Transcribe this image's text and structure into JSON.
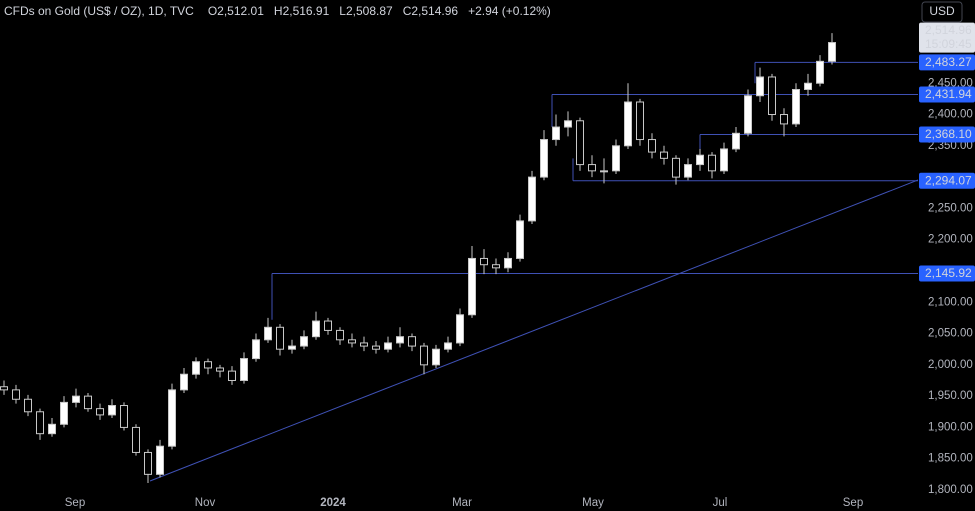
{
  "header": {
    "symbol": "CFDs on Gold (US$ / OZ), 1D, TVC",
    "ohlc": [
      {
        "label": "O",
        "value": "2,512.01"
      },
      {
        "label": "H",
        "value": "2,516.91"
      },
      {
        "label": "L",
        "value": "2,508.87"
      },
      {
        "label": "C",
        "value": "2,514.96"
      }
    ],
    "change": "+2.94 (+0.12%)"
  },
  "currency_button": "USD",
  "chart_data": {
    "type": "candlestick",
    "up_color": "#ffffff",
    "down_color": "#000000",
    "wick_color": "#c8c8c8",
    "level_color": "#3f51b5",
    "open": [
      1965,
      1960,
      1945,
      1925,
      1890,
      1905,
      1940,
      1950,
      1930,
      1920,
      1935,
      1900,
      1860,
      1825,
      1870,
      1960,
      1985,
      2005,
      1995,
      1990,
      1975,
      2010,
      2040,
      2060,
      2025,
      2030,
      2045,
      2070,
      2055,
      2040,
      2035,
      2030,
      2025,
      2035,
      2045,
      2030,
      2000,
      2025,
      2035,
      2080,
      2170,
      2160,
      2155,
      2170,
      2230,
      2300,
      2360,
      2380,
      2390,
      2320,
      2310,
      2310,
      2350,
      2420,
      2360,
      2340,
      2330,
      2300,
      2320,
      2335,
      2310,
      2345,
      2370,
      2430,
      2460,
      2400,
      2385,
      2440,
      2450,
      2485
    ],
    "high": [
      1975,
      1968,
      1952,
      1930,
      1915,
      1950,
      1962,
      1955,
      1938,
      1945,
      1940,
      1905,
      1865,
      1880,
      1970,
      1995,
      2012,
      2010,
      2000,
      1998,
      2020,
      2050,
      2075,
      2065,
      2040,
      2055,
      2085,
      2075,
      2060,
      2050,
      2045,
      2038,
      2045,
      2060,
      2050,
      2035,
      2032,
      2045,
      2090,
      2190,
      2185,
      2170,
      2180,
      2240,
      2310,
      2375,
      2400,
      2405,
      2395,
      2335,
      2330,
      2360,
      2450,
      2425,
      2370,
      2350,
      2335,
      2330,
      2345,
      2340,
      2355,
      2380,
      2440,
      2475,
      2465,
      2410,
      2450,
      2465,
      2495,
      2530
    ],
    "low": [
      1952,
      1938,
      1918,
      1880,
      1885,
      1900,
      1932,
      1925,
      1912,
      1915,
      1895,
      1855,
      1810,
      1820,
      1865,
      1955,
      1978,
      1985,
      1980,
      1968,
      1970,
      2005,
      2035,
      2015,
      2018,
      2025,
      2040,
      2048,
      2032,
      2028,
      2022,
      2018,
      2020,
      2028,
      2022,
      1985,
      1995,
      2020,
      2030,
      2075,
      2145,
      2145,
      2148,
      2165,
      2225,
      2295,
      2350,
      2365,
      2310,
      2300,
      2290,
      2305,
      2345,
      2350,
      2330,
      2320,
      2288,
      2295,
      2310,
      2298,
      2305,
      2340,
      2365,
      2420,
      2390,
      2365,
      2380,
      2430,
      2445,
      2480
    ],
    "close": [
      1960,
      1945,
      1925,
      1890,
      1905,
      1940,
      1950,
      1930,
      1920,
      1935,
      1900,
      1860,
      1825,
      1870,
      1960,
      1985,
      2005,
      1995,
      1990,
      1975,
      2010,
      2040,
      2060,
      2025,
      2030,
      2045,
      2070,
      2055,
      2040,
      2035,
      2030,
      2025,
      2035,
      2045,
      2030,
      2000,
      2025,
      2035,
      2080,
      2170,
      2160,
      2155,
      2170,
      2230,
      2300,
      2360,
      2380,
      2390,
      2320,
      2310,
      2310,
      2350,
      2420,
      2360,
      2340,
      2330,
      2300,
      2320,
      2335,
      2310,
      2345,
      2370,
      2430,
      2460,
      2400,
      2385,
      2440,
      2450,
      2485,
      2515
    ],
    "x_labels": [
      "Sep",
      "Nov",
      "2024",
      "Mar",
      "May",
      "Jul",
      "Sep"
    ],
    "ylim": [
      1800,
      2583
    ],
    "yticks": [
      {
        "value": 1800,
        "label": "1,800.00"
      },
      {
        "value": 1850,
        "label": "1,850.00"
      },
      {
        "value": 1900,
        "label": "1,900.00"
      },
      {
        "value": 1950,
        "label": "1,950.00"
      },
      {
        "value": 2000,
        "label": "2,000.00"
      },
      {
        "value": 2050,
        "label": "2,050.00"
      },
      {
        "value": 2100,
        "label": "2,100.00"
      },
      {
        "value": 2200,
        "label": "2,200.00"
      },
      {
        "value": 2250,
        "label": "2,250.00"
      },
      {
        "value": 2350,
        "label": "2,350.00"
      },
      {
        "value": 2400,
        "label": "2,400.00"
      },
      {
        "value": 2450,
        "label": "2,450.00"
      }
    ],
    "levels": [
      {
        "value": 2483.27,
        "label": "2,483.27"
      },
      {
        "value": 2431.94,
        "label": "2,431.94"
      },
      {
        "value": 2368.1,
        "label": "2,368.10"
      },
      {
        "value": 2294.07,
        "label": "2,294.07"
      },
      {
        "value": 2145.92,
        "label": "2,145.92"
      }
    ],
    "last_price": {
      "value": 2514.96,
      "label": "2,514.96"
    },
    "countdown": "15:09:45"
  }
}
